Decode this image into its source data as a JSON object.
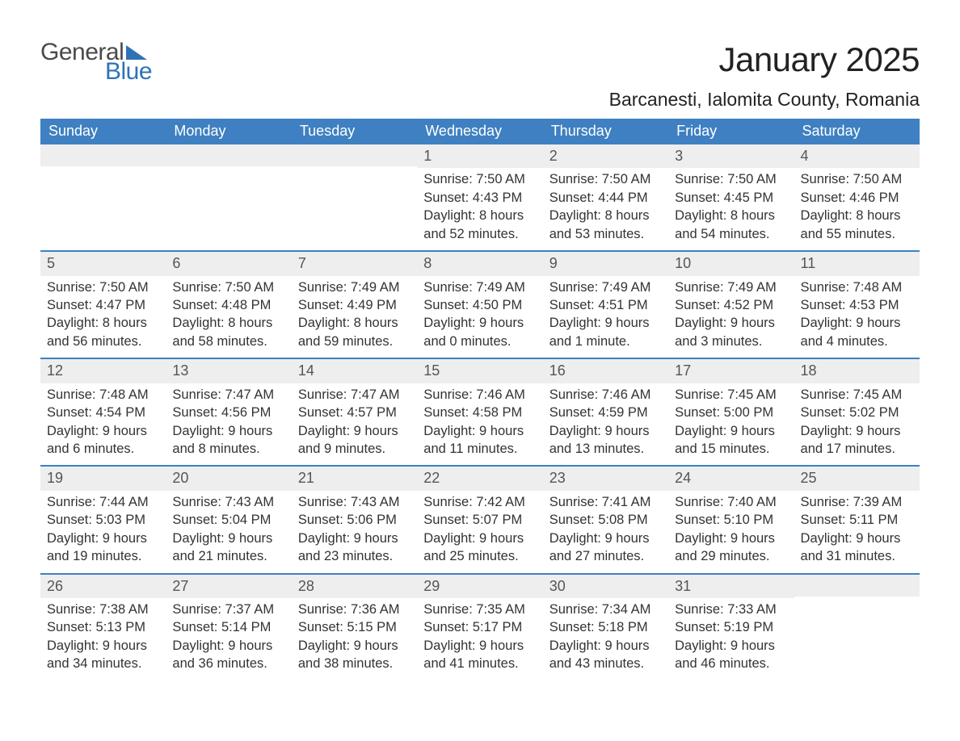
{
  "logo": {
    "word1": "General",
    "word2": "Blue"
  },
  "title": "January 2025",
  "location": "Barcanesti, Ialomita County, Romania",
  "colors": {
    "header_bg": "#3e80c1",
    "header_text": "#ffffff",
    "daynum_bg": "#eeeeee",
    "accent": "#2f73b7",
    "body_text": "#333333",
    "page_bg": "#ffffff"
  },
  "day_labels": [
    "Sunday",
    "Monday",
    "Tuesday",
    "Wednesday",
    "Thursday",
    "Friday",
    "Saturday"
  ],
  "weeks": [
    [
      {
        "n": "",
        "sr": "",
        "ss": "",
        "dl1": "",
        "dl2": ""
      },
      {
        "n": "",
        "sr": "",
        "ss": "",
        "dl1": "",
        "dl2": ""
      },
      {
        "n": "",
        "sr": "",
        "ss": "",
        "dl1": "",
        "dl2": ""
      },
      {
        "n": "1",
        "sr": "Sunrise: 7:50 AM",
        "ss": "Sunset: 4:43 PM",
        "dl1": "Daylight: 8 hours",
        "dl2": "and 52 minutes."
      },
      {
        "n": "2",
        "sr": "Sunrise: 7:50 AM",
        "ss": "Sunset: 4:44 PM",
        "dl1": "Daylight: 8 hours",
        "dl2": "and 53 minutes."
      },
      {
        "n": "3",
        "sr": "Sunrise: 7:50 AM",
        "ss": "Sunset: 4:45 PM",
        "dl1": "Daylight: 8 hours",
        "dl2": "and 54 minutes."
      },
      {
        "n": "4",
        "sr": "Sunrise: 7:50 AM",
        "ss": "Sunset: 4:46 PM",
        "dl1": "Daylight: 8 hours",
        "dl2": "and 55 minutes."
      }
    ],
    [
      {
        "n": "5",
        "sr": "Sunrise: 7:50 AM",
        "ss": "Sunset: 4:47 PM",
        "dl1": "Daylight: 8 hours",
        "dl2": "and 56 minutes."
      },
      {
        "n": "6",
        "sr": "Sunrise: 7:50 AM",
        "ss": "Sunset: 4:48 PM",
        "dl1": "Daylight: 8 hours",
        "dl2": "and 58 minutes."
      },
      {
        "n": "7",
        "sr": "Sunrise: 7:49 AM",
        "ss": "Sunset: 4:49 PM",
        "dl1": "Daylight: 8 hours",
        "dl2": "and 59 minutes."
      },
      {
        "n": "8",
        "sr": "Sunrise: 7:49 AM",
        "ss": "Sunset: 4:50 PM",
        "dl1": "Daylight: 9 hours",
        "dl2": "and 0 minutes."
      },
      {
        "n": "9",
        "sr": "Sunrise: 7:49 AM",
        "ss": "Sunset: 4:51 PM",
        "dl1": "Daylight: 9 hours",
        "dl2": "and 1 minute."
      },
      {
        "n": "10",
        "sr": "Sunrise: 7:49 AM",
        "ss": "Sunset: 4:52 PM",
        "dl1": "Daylight: 9 hours",
        "dl2": "and 3 minutes."
      },
      {
        "n": "11",
        "sr": "Sunrise: 7:48 AM",
        "ss": "Sunset: 4:53 PM",
        "dl1": "Daylight: 9 hours",
        "dl2": "and 4 minutes."
      }
    ],
    [
      {
        "n": "12",
        "sr": "Sunrise: 7:48 AM",
        "ss": "Sunset: 4:54 PM",
        "dl1": "Daylight: 9 hours",
        "dl2": "and 6 minutes."
      },
      {
        "n": "13",
        "sr": "Sunrise: 7:47 AM",
        "ss": "Sunset: 4:56 PM",
        "dl1": "Daylight: 9 hours",
        "dl2": "and 8 minutes."
      },
      {
        "n": "14",
        "sr": "Sunrise: 7:47 AM",
        "ss": "Sunset: 4:57 PM",
        "dl1": "Daylight: 9 hours",
        "dl2": "and 9 minutes."
      },
      {
        "n": "15",
        "sr": "Sunrise: 7:46 AM",
        "ss": "Sunset: 4:58 PM",
        "dl1": "Daylight: 9 hours",
        "dl2": "and 11 minutes."
      },
      {
        "n": "16",
        "sr": "Sunrise: 7:46 AM",
        "ss": "Sunset: 4:59 PM",
        "dl1": "Daylight: 9 hours",
        "dl2": "and 13 minutes."
      },
      {
        "n": "17",
        "sr": "Sunrise: 7:45 AM",
        "ss": "Sunset: 5:00 PM",
        "dl1": "Daylight: 9 hours",
        "dl2": "and 15 minutes."
      },
      {
        "n": "18",
        "sr": "Sunrise: 7:45 AM",
        "ss": "Sunset: 5:02 PM",
        "dl1": "Daylight: 9 hours",
        "dl2": "and 17 minutes."
      }
    ],
    [
      {
        "n": "19",
        "sr": "Sunrise: 7:44 AM",
        "ss": "Sunset: 5:03 PM",
        "dl1": "Daylight: 9 hours",
        "dl2": "and 19 minutes."
      },
      {
        "n": "20",
        "sr": "Sunrise: 7:43 AM",
        "ss": "Sunset: 5:04 PM",
        "dl1": "Daylight: 9 hours",
        "dl2": "and 21 minutes."
      },
      {
        "n": "21",
        "sr": "Sunrise: 7:43 AM",
        "ss": "Sunset: 5:06 PM",
        "dl1": "Daylight: 9 hours",
        "dl2": "and 23 minutes."
      },
      {
        "n": "22",
        "sr": "Sunrise: 7:42 AM",
        "ss": "Sunset: 5:07 PM",
        "dl1": "Daylight: 9 hours",
        "dl2": "and 25 minutes."
      },
      {
        "n": "23",
        "sr": "Sunrise: 7:41 AM",
        "ss": "Sunset: 5:08 PM",
        "dl1": "Daylight: 9 hours",
        "dl2": "and 27 minutes."
      },
      {
        "n": "24",
        "sr": "Sunrise: 7:40 AM",
        "ss": "Sunset: 5:10 PM",
        "dl1": "Daylight: 9 hours",
        "dl2": "and 29 minutes."
      },
      {
        "n": "25",
        "sr": "Sunrise: 7:39 AM",
        "ss": "Sunset: 5:11 PM",
        "dl1": "Daylight: 9 hours",
        "dl2": "and 31 minutes."
      }
    ],
    [
      {
        "n": "26",
        "sr": "Sunrise: 7:38 AM",
        "ss": "Sunset: 5:13 PM",
        "dl1": "Daylight: 9 hours",
        "dl2": "and 34 minutes."
      },
      {
        "n": "27",
        "sr": "Sunrise: 7:37 AM",
        "ss": "Sunset: 5:14 PM",
        "dl1": "Daylight: 9 hours",
        "dl2": "and 36 minutes."
      },
      {
        "n": "28",
        "sr": "Sunrise: 7:36 AM",
        "ss": "Sunset: 5:15 PM",
        "dl1": "Daylight: 9 hours",
        "dl2": "and 38 minutes."
      },
      {
        "n": "29",
        "sr": "Sunrise: 7:35 AM",
        "ss": "Sunset: 5:17 PM",
        "dl1": "Daylight: 9 hours",
        "dl2": "and 41 minutes."
      },
      {
        "n": "30",
        "sr": "Sunrise: 7:34 AM",
        "ss": "Sunset: 5:18 PM",
        "dl1": "Daylight: 9 hours",
        "dl2": "and 43 minutes."
      },
      {
        "n": "31",
        "sr": "Sunrise: 7:33 AM",
        "ss": "Sunset: 5:19 PM",
        "dl1": "Daylight: 9 hours",
        "dl2": "and 46 minutes."
      },
      {
        "n": "",
        "sr": "",
        "ss": "",
        "dl1": "",
        "dl2": ""
      }
    ]
  ]
}
